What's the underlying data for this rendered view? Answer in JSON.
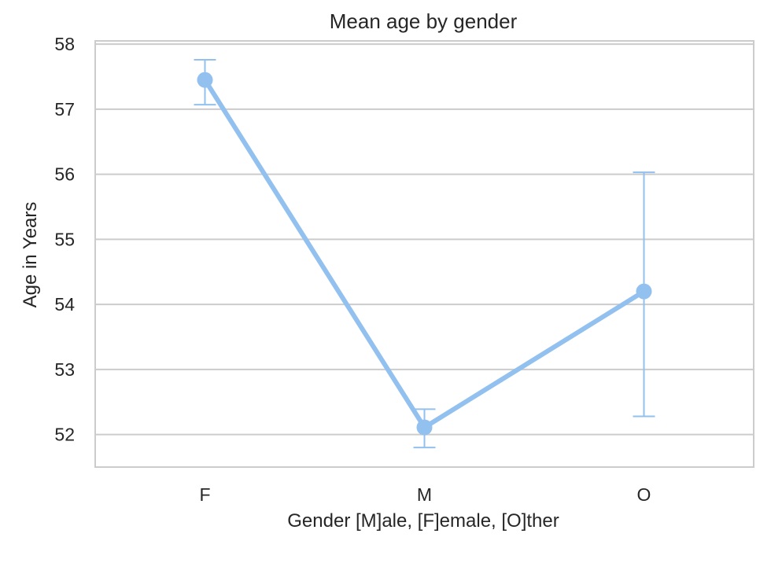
{
  "chart_data": {
    "type": "line",
    "title": "Mean age by gender",
    "xlabel": "Gender [M]ale, [F]emale, [O]ther",
    "ylabel": "Age in Years",
    "categories": [
      "F",
      "M",
      "O"
    ],
    "values": [
      57.45,
      52.11,
      54.2
    ],
    "error_low": [
      57.07,
      51.8,
      52.28
    ],
    "error_high": [
      57.76,
      52.39,
      56.03
    ],
    "ylim": [
      51.5,
      58.05
    ],
    "yticks": [
      52,
      53,
      54,
      55,
      56,
      57,
      58
    ],
    "grid": true,
    "color": "#92c0ef"
  }
}
